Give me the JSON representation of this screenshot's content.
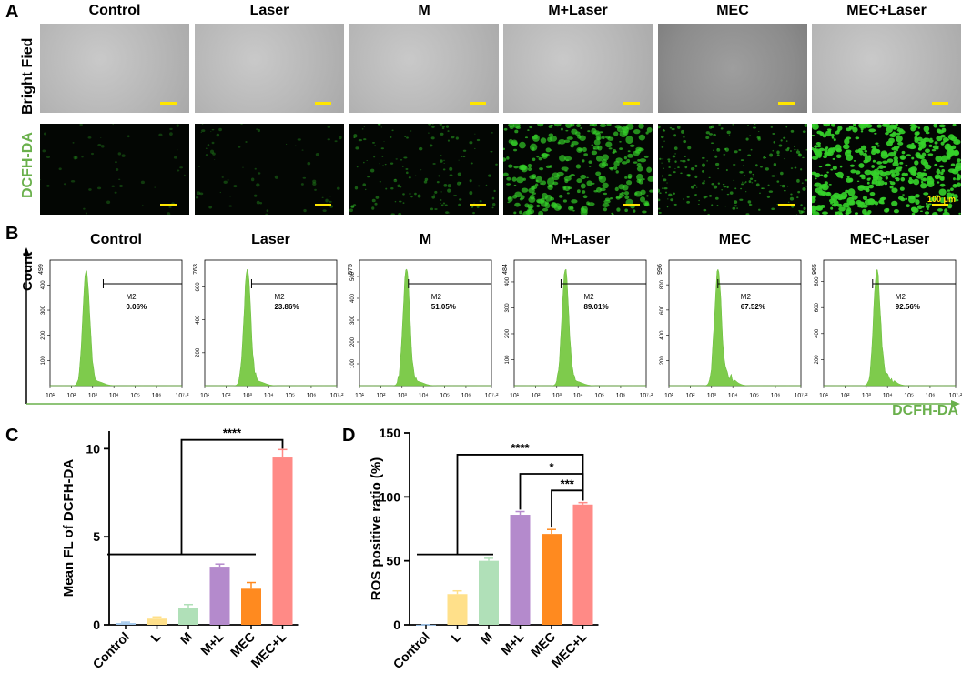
{
  "panels": {
    "A": "A",
    "B": "B",
    "C": "C",
    "D": "D"
  },
  "groups": [
    "Control",
    "Laser",
    "M",
    "M+Laser",
    "MEC",
    "MEC+Laser"
  ],
  "panel_a": {
    "row_labels": [
      "Bright Fied",
      "DCFH-DA"
    ],
    "scale_label": "100 μm",
    "fluorescence_density": [
      0.02,
      0.06,
      0.25,
      0.6,
      0.45,
      0.95
    ],
    "colors": {
      "fluor": "#35d12a",
      "scale": "#ffe600",
      "dcfh_label": "#6ab04c"
    }
  },
  "chart_data": [
    {
      "type": "histogram",
      "panel": "B",
      "x_axis_label": "DCFH-DA",
      "y_axis_label": "Count",
      "x_tick_labels": [
        "10¹",
        "10²",
        "10³",
        "10⁴",
        "10⁵",
        "10⁶",
        "10⁷·²"
      ],
      "gate_name": "M2",
      "plots": [
        {
          "title": "Control",
          "ymax": "499",
          "ticks": [
            "100",
            "200",
            "300",
            "400"
          ],
          "peak_log": 2.7,
          "gate_start_log": 3.5,
          "gate_pct": "0.06%"
        },
        {
          "title": "Laser",
          "ymax": "763",
          "ticks": [
            "200",
            "400",
            "600"
          ],
          "peak_log": 3.0,
          "gate_start_log": 3.2,
          "gate_pct": "23.86%"
        },
        {
          "title": "M",
          "ymax": "575",
          "ticks": [
            "100",
            "200",
            "300",
            "400",
            "500"
          ],
          "peak_log": 3.2,
          "gate_start_log": 3.3,
          "gate_pct": "51.05%"
        },
        {
          "title": "M+Laser",
          "ymax": "484",
          "ticks": [
            "100",
            "200",
            "300",
            "400"
          ],
          "peak_log": 3.4,
          "gate_start_log": 3.2,
          "gate_pct": "89.01%"
        },
        {
          "title": "MEC",
          "ymax": "996",
          "ticks": [
            "200",
            "400",
            "600",
            "800"
          ],
          "peak_log": 3.3,
          "gate_start_log": 3.3,
          "gate_pct": "67.52%"
        },
        {
          "title": "MEC+Laser",
          "ymax": "965",
          "ticks": [
            "200",
            "400",
            "600",
            "800"
          ],
          "peak_log": 3.5,
          "gate_start_log": 3.3,
          "gate_pct": "92.56%"
        }
      ]
    },
    {
      "type": "bar",
      "panel": "C",
      "categories": [
        "Control",
        "L",
        "M",
        "M+L",
        "MEC",
        "MEC+L"
      ],
      "values": [
        0.1,
        0.35,
        0.95,
        3.25,
        2.05,
        9.5
      ],
      "errors": [
        0.05,
        0.1,
        0.2,
        0.2,
        0.35,
        0.45
      ],
      "colors": [
        "#a3c8ec",
        "#ffe08a",
        "#b0e0b8",
        "#b48acc",
        "#ff8a1f",
        "#ff8a86"
      ],
      "ylabel": "Mean FL of DCFH-DA",
      "ylim": [
        0,
        11
      ],
      "yticks": [
        "0",
        "5",
        "10"
      ],
      "significance": [
        "****"
      ]
    },
    {
      "type": "bar",
      "panel": "D",
      "categories": [
        "Control",
        "L",
        "M",
        "M+L",
        "MEC",
        "MEC+L"
      ],
      "values": [
        0.06,
        24,
        50,
        86,
        71,
        94
      ],
      "errors": [
        0.05,
        2.5,
        2,
        2.5,
        3.5,
        1.5
      ],
      "colors": [
        "#a3c8ec",
        "#ffe08a",
        "#b0e0b8",
        "#b48acc",
        "#ff8a1f",
        "#ff8a86"
      ],
      "ylabel": "ROS positive ratio (%)",
      "ylim": [
        0,
        150
      ],
      "yticks": [
        "0",
        "50",
        "100",
        "150"
      ],
      "significance": [
        "****",
        "*",
        "***"
      ]
    }
  ]
}
